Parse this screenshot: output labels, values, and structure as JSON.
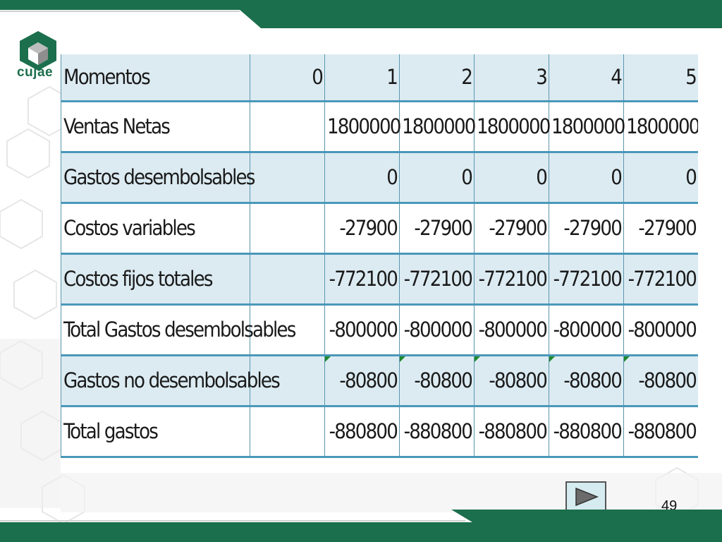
{
  "brand": {
    "logo_text": "cujae",
    "primary_color": "#1b6f4c",
    "band_color": "#1b6f4c"
  },
  "table": {
    "header": {
      "label": "Momentos",
      "cols": [
        "0",
        "1",
        "2",
        "3",
        "4",
        "5"
      ]
    },
    "rows": [
      {
        "label": "Ventas Netas",
        "values": [
          "",
          "1800000",
          "1800000",
          "1800000",
          "1800000",
          "1800000"
        ]
      },
      {
        "label": "Gastos desembolsables",
        "values": [
          "",
          "0",
          "0",
          "0",
          "0",
          "0"
        ]
      },
      {
        "label": "Costos variables",
        "values": [
          "",
          "-27900",
          "-27900",
          "-27900",
          "-27900",
          "-27900"
        ]
      },
      {
        "label": "Costos fijos totales",
        "values": [
          "",
          "-772100",
          "-772100",
          "-772100",
          "-772100",
          "-772100"
        ]
      },
      {
        "label": "Total Gastos desembolsables",
        "values": [
          "",
          "-800000",
          "-800000",
          "-800000",
          "-800000",
          "-800000"
        ]
      },
      {
        "label": "Gastos no desembolsables",
        "values": [
          "",
          "-80800",
          "-80800",
          "-80800",
          "-80800",
          "-80800"
        ]
      },
      {
        "label": "Total gastos",
        "values": [
          "",
          "-880800",
          "-880800",
          "-880800",
          "-880800",
          "-880800"
        ]
      }
    ],
    "shade_color": "#dcebf2",
    "rule_color": "#4a98b9"
  },
  "navigation": {
    "next_icon": "play-triangle-icon"
  },
  "page_number": "49"
}
